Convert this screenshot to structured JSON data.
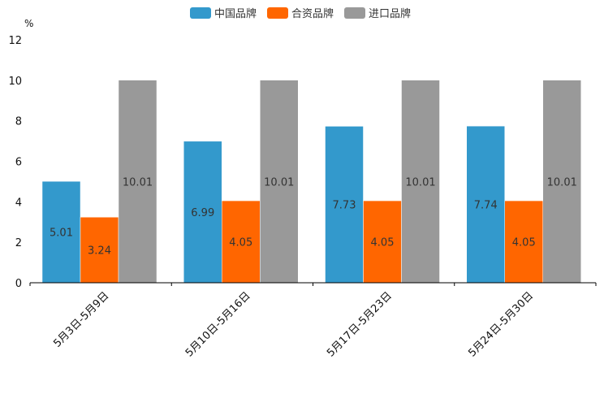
{
  "chart_data": {
    "type": "bar",
    "unit": "%",
    "categories": [
      "5月3日-5月9日",
      "5月10日-5月16日",
      "5月17日-5月23日",
      "5月24日-5月30日"
    ],
    "series": [
      {
        "name": "中国品牌",
        "color": "#3399cc",
        "values": [
          5.01,
          6.99,
          7.73,
          7.74
        ],
        "labels": [
          "5.01",
          "6.99",
          "7.73",
          "7.74"
        ]
      },
      {
        "name": "合资品牌",
        "color": "#ff6600",
        "values": [
          3.24,
          4.05,
          4.05,
          4.05
        ],
        "labels": [
          "3.24",
          "4.05",
          "4.05",
          "4.05"
        ]
      },
      {
        "name": "进口品牌",
        "color": "#999999",
        "values": [
          10.01,
          10.01,
          10.01,
          10.01
        ],
        "labels": [
          "10.01",
          "10.01",
          "10.01",
          "10.01"
        ]
      }
    ],
    "ylim": [
      0,
      12
    ],
    "yticks": [
      "0",
      "2",
      "4",
      "6",
      "8",
      "10",
      "12"
    ],
    "legend_position": "top-center",
    "grid": false
  }
}
